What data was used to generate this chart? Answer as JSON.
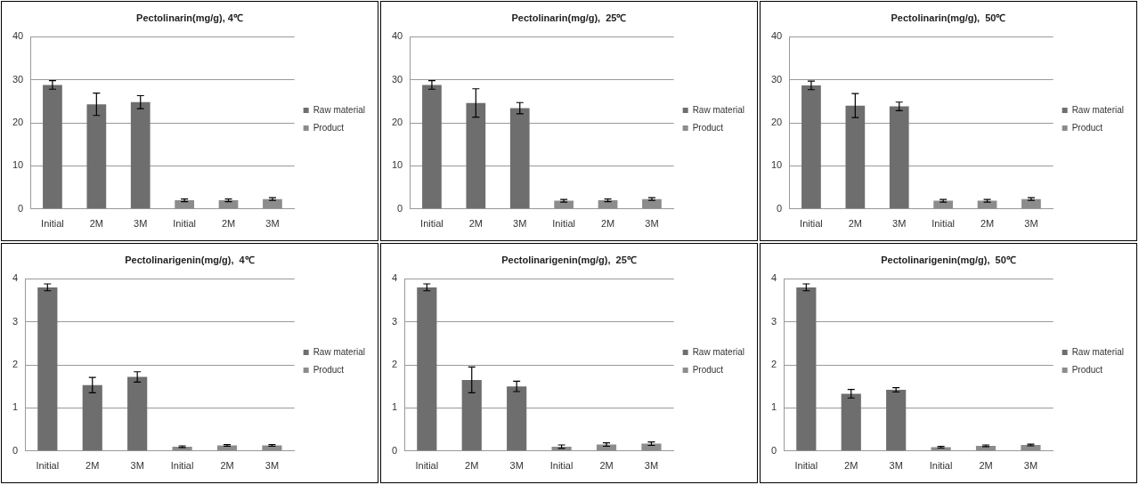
{
  "chart_data": [
    {
      "type": "bar",
      "title": "Pectolinarin(mg/g), 4℃",
      "categories": [
        "Initial",
        "2M",
        "3M",
        "Initial",
        "2M",
        "3M"
      ],
      "ylim": [
        0,
        40
      ],
      "yticks": [
        0,
        10,
        20,
        30,
        40
      ],
      "grid": "y",
      "legend": "right",
      "series": [
        {
          "name": "Raw material",
          "color": "#6e6e6e",
          "values": [
            28.8,
            24.3,
            24.8,
            null,
            null,
            null
          ],
          "errors": [
            1.0,
            2.6,
            1.5,
            null,
            null,
            null
          ]
        },
        {
          "name": "Product",
          "color": "#8c8c8c",
          "values": [
            null,
            null,
            null,
            2.0,
            2.0,
            2.3
          ],
          "errors": [
            null,
            null,
            null,
            0.3,
            0.3,
            0.3
          ]
        }
      ]
    },
    {
      "type": "bar",
      "title": "Pectolinarin(mg/g),  25℃",
      "categories": [
        "Initial",
        "2M",
        "3M",
        "Initial",
        "2M",
        "3M"
      ],
      "ylim": [
        0,
        40
      ],
      "yticks": [
        0,
        10,
        20,
        30,
        40
      ],
      "grid": "y",
      "legend": "right",
      "series": [
        {
          "name": "Raw material",
          "color": "#6e6e6e",
          "values": [
            28.8,
            24.6,
            23.4,
            null,
            null,
            null
          ],
          "errors": [
            1.0,
            3.3,
            1.3,
            null,
            null,
            null
          ]
        },
        {
          "name": "Product",
          "color": "#8c8c8c",
          "values": [
            null,
            null,
            null,
            1.9,
            2.0,
            2.3
          ],
          "errors": [
            null,
            null,
            null,
            0.3,
            0.3,
            0.3
          ]
        }
      ]
    },
    {
      "type": "bar",
      "title": "Pectolinarin(mg/g),  50℃",
      "categories": [
        "Initial",
        "2M",
        "3M",
        "Initial",
        "2M",
        "3M"
      ],
      "ylim": [
        0,
        40
      ],
      "yticks": [
        0,
        10,
        20,
        30,
        40
      ],
      "grid": "y",
      "legend": "right",
      "series": [
        {
          "name": "Raw material",
          "color": "#6e6e6e",
          "values": [
            28.7,
            24.0,
            23.8,
            null,
            null,
            null
          ],
          "errors": [
            1.0,
            2.8,
            1.0,
            null,
            null,
            null
          ]
        },
        {
          "name": "Product",
          "color": "#8c8c8c",
          "values": [
            null,
            null,
            null,
            1.9,
            1.9,
            2.3
          ],
          "errors": [
            null,
            null,
            null,
            0.3,
            0.3,
            0.3
          ]
        }
      ]
    },
    {
      "type": "bar",
      "title": "Pectolinarigenin(mg/g),  4℃",
      "categories": [
        "Initial",
        "2M",
        "3M",
        "Initial",
        "2M",
        "3M"
      ],
      "ylim": [
        0,
        4
      ],
      "yticks": [
        0,
        1,
        2,
        3,
        4
      ],
      "grid": "y",
      "legend": "right",
      "series": [
        {
          "name": "Raw material",
          "color": "#6e6e6e",
          "values": [
            3.8,
            1.53,
            1.72,
            null,
            null,
            null
          ],
          "errors": [
            0.08,
            0.18,
            0.12,
            null,
            null,
            null
          ]
        },
        {
          "name": "Product",
          "color": "#8c8c8c",
          "values": [
            null,
            null,
            null,
            0.1,
            0.13,
            0.13
          ],
          "errors": [
            null,
            null,
            null,
            0.02,
            0.02,
            0.02
          ]
        }
      ]
    },
    {
      "type": "bar",
      "title": "Pectolinarigenin(mg/g),  25℃",
      "categories": [
        "Initial",
        "2M",
        "3M",
        "Initial",
        "2M",
        "3M"
      ],
      "ylim": [
        0,
        4
      ],
      "yticks": [
        0,
        1,
        2,
        3,
        4
      ],
      "grid": "y",
      "legend": "right",
      "series": [
        {
          "name": "Raw material",
          "color": "#6e6e6e",
          "values": [
            3.8,
            1.65,
            1.5,
            null,
            null,
            null
          ],
          "errors": [
            0.08,
            0.3,
            0.12,
            null,
            null,
            null
          ]
        },
        {
          "name": "Product",
          "color": "#8c8c8c",
          "values": [
            null,
            null,
            null,
            0.1,
            0.15,
            0.17
          ],
          "errors": [
            null,
            null,
            null,
            0.04,
            0.04,
            0.04
          ]
        }
      ]
    },
    {
      "type": "bar",
      "title": "Pectolinarigenin(mg/g),  50℃",
      "categories": [
        "Initial",
        "2M",
        "3M",
        "Initial",
        "2M",
        "3M"
      ],
      "ylim": [
        0,
        4
      ],
      "yticks": [
        0,
        1,
        2,
        3,
        4
      ],
      "grid": "y",
      "legend": "right",
      "series": [
        {
          "name": "Raw material",
          "color": "#6e6e6e",
          "values": [
            3.8,
            1.33,
            1.42,
            null,
            null,
            null
          ],
          "errors": [
            0.08,
            0.1,
            0.05,
            null,
            null,
            null
          ]
        },
        {
          "name": "Product",
          "color": "#8c8c8c",
          "values": [
            null,
            null,
            null,
            0.09,
            0.12,
            0.14
          ],
          "errors": [
            null,
            null,
            null,
            0.02,
            0.02,
            0.02
          ]
        }
      ]
    }
  ]
}
